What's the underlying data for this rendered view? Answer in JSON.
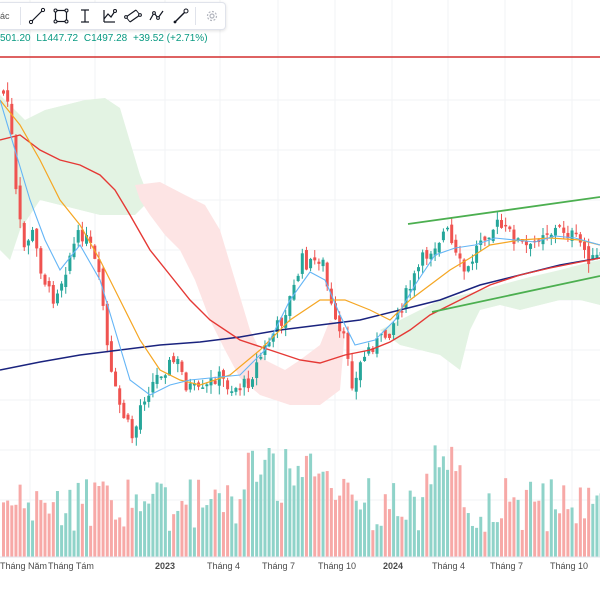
{
  "toolbar": {
    "stub_text": "ác",
    "tools": [
      {
        "name": "trend-line-tool",
        "icon": "trend-line-icon"
      },
      {
        "name": "rectangle-tool",
        "icon": "rectangle-icon"
      },
      {
        "name": "text-tool",
        "icon": "text-cursor-icon"
      },
      {
        "name": "long-position-tool",
        "icon": "long-position-icon"
      },
      {
        "name": "parallel-channel-tool",
        "icon": "parallel-channel-icon"
      },
      {
        "name": "path-tool",
        "icon": "path-icon"
      },
      {
        "name": "brush-tool",
        "icon": "brush-icon"
      },
      {
        "name": "settings",
        "icon": "gear-icon"
      }
    ]
  },
  "legend": {
    "high": "501.20",
    "low": "L1447.72",
    "close": "C1497.28",
    "change": "+39.52 (+2.71%)"
  },
  "colors": {
    "up": "#26a69a",
    "down": "#ef5350",
    "up_volume": "#8fd3c9",
    "down_volume": "#f7a9a7",
    "ma_red": "#e53935",
    "ma_navy": "#1a237e",
    "ma_orange": "#f5a623",
    "ma_blue": "#64b5f6",
    "channel": "#4caf50",
    "cloud_green": "#e3f3e3",
    "cloud_red": "#fde4e4",
    "resistance": "#d32f2f"
  },
  "chart_data": {
    "type": "candlestick",
    "x_labels": [
      "Tháng Năm",
      "Tháng Tám",
      "2023",
      "Tháng 4",
      "Tháng 7",
      "Tháng 10",
      "2024",
      "Tháng 4",
      "Tháng 7",
      "Tháng 10"
    ],
    "bold_labels": [
      "2023",
      "2024"
    ]
  }
}
